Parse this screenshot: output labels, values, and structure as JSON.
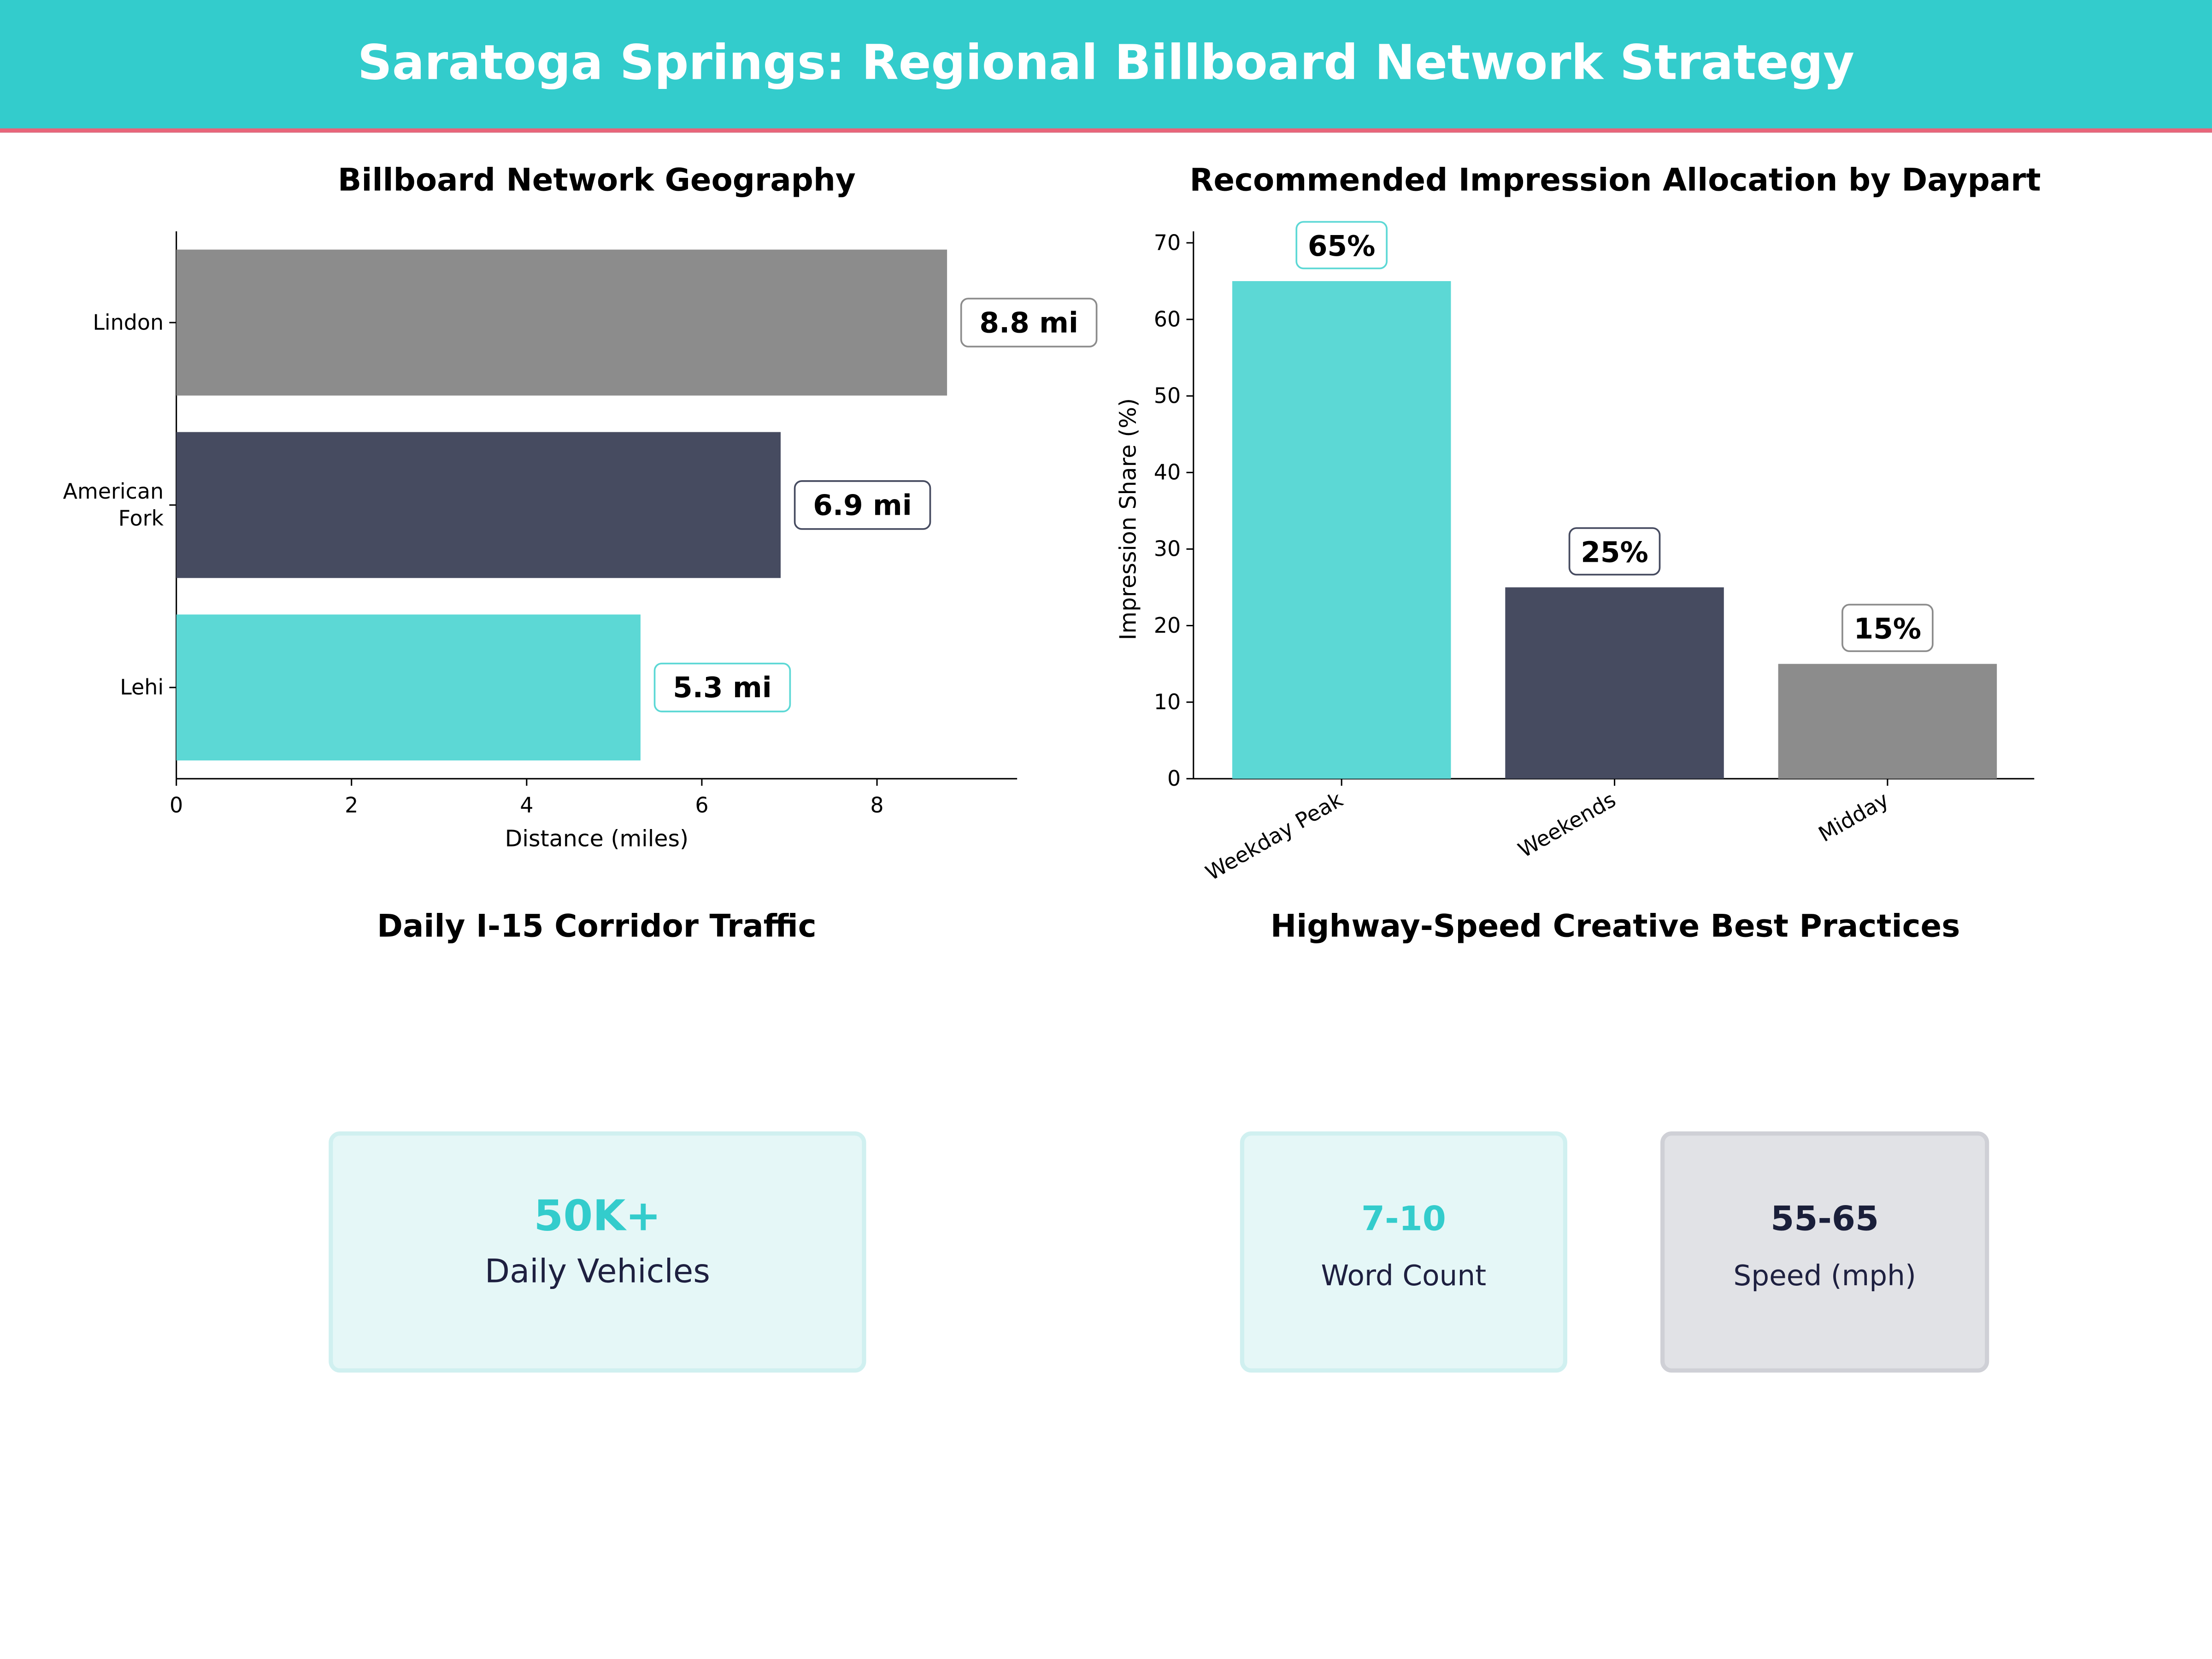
{
  "header": {
    "title": "Saratoga Springs: Regional Billboard Network Strategy"
  },
  "colors": {
    "header": "#33cccc",
    "accent_line": "#e8657a",
    "teal": "#5cd8d5",
    "navy": "#464b60",
    "gray": "#8c8c8c"
  },
  "chart_data": [
    {
      "type": "bar",
      "orientation": "horizontal",
      "title": "Billboard Network Geography",
      "xlabel": "Distance (miles)",
      "ylabel": "",
      "categories": [
        "Lindon",
        "American\nFork",
        "Lehi"
      ],
      "values": [
        8.8,
        6.9,
        5.3
      ],
      "data_labels": [
        "8.8  mi",
        "6.9  mi",
        "5.3  mi"
      ],
      "bar_colors": [
        "#8c8c8c",
        "#464b60",
        "#5cd8d5"
      ],
      "xlim": [
        0,
        9.6
      ],
      "xticks": [
        0,
        2,
        4,
        6,
        8
      ],
      "grid": false
    },
    {
      "type": "bar",
      "title": "Recommended Impression Allocation by Daypart",
      "xlabel": "",
      "ylabel": "Impression Share (%)",
      "categories": [
        "Weekday Peak",
        "Weekends",
        "Midday"
      ],
      "values": [
        65,
        25,
        15
      ],
      "data_labels": [
        "65%",
        "25%",
        "15%"
      ],
      "bar_colors": [
        "#5cd8d5",
        "#464b60",
        "#8c8c8c"
      ],
      "ylim": [
        0,
        71.5
      ],
      "yticks": [
        0,
        10,
        20,
        30,
        40,
        50,
        60,
        70
      ],
      "grid": false
    }
  ],
  "traffic": {
    "title": "Daily I-15 Corridor Traffic",
    "value": "50K+",
    "label": "Daily Vehicles"
  },
  "practices": {
    "title": "Highway-Speed Creative Best Practices",
    "cards": [
      {
        "value": "7-10",
        "label": "Word Count"
      },
      {
        "value": "55-65",
        "label": "Speed (mph)"
      }
    ]
  }
}
